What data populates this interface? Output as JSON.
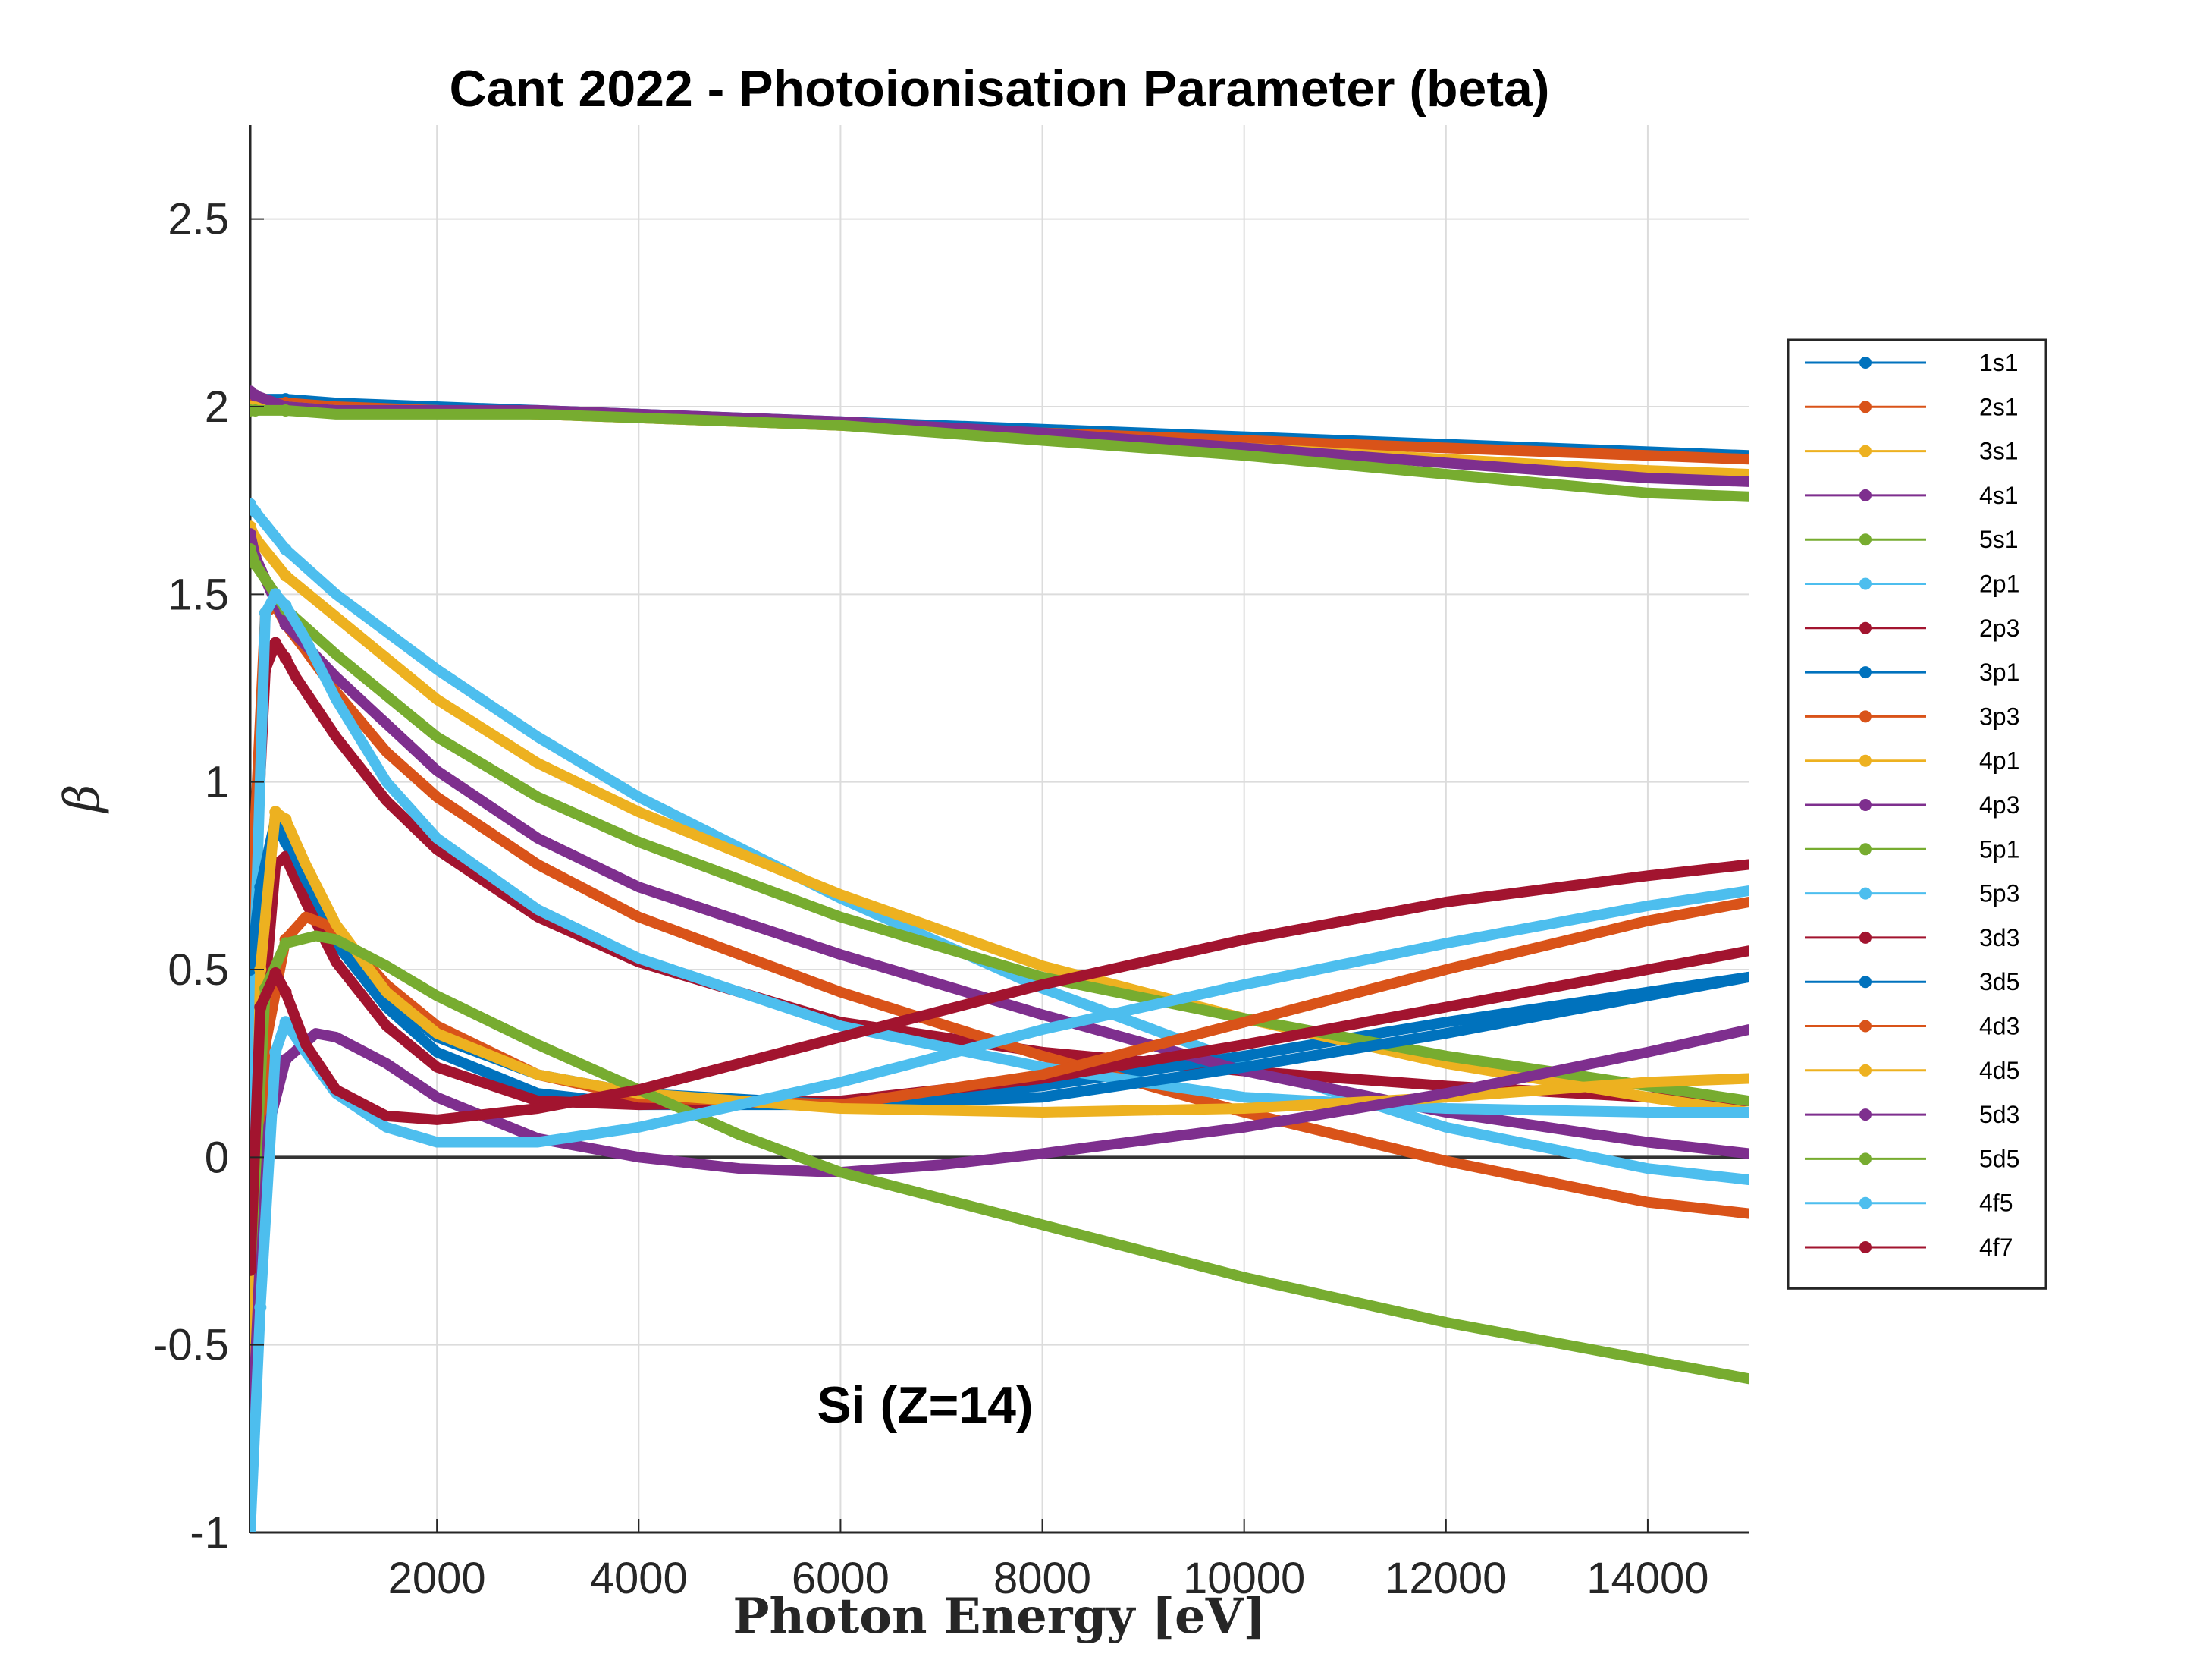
{
  "chart_data": {
    "type": "line",
    "title": "Cant 2022 - Photoionisation Parameter (beta)",
    "xlabel": "Photon Energy [eV]",
    "ylabel": "β",
    "annotation": "Si (Z=14)",
    "xlim": [
      150,
      15000
    ],
    "ylim": [
      -1,
      2.75
    ],
    "xticks": [
      2000,
      4000,
      6000,
      8000,
      10000,
      12000,
      14000
    ],
    "yticks": [
      -1,
      -0.5,
      0,
      0.5,
      1,
      1.5,
      2,
      2.5
    ],
    "xtick_labels": [
      "2000",
      "4000",
      "6000",
      "8000",
      "10000",
      "12000",
      "14000"
    ],
    "ytick_labels": [
      "-1",
      "-0.5",
      "0",
      "0.5",
      "1",
      "1.5",
      "2",
      "2.5"
    ],
    "grid": true,
    "legend_position": "outside-right",
    "zero_line": true,
    "series": [
      {
        "name": "1s1",
        "color": "#0072BD",
        "x": [
          150,
          200,
          500,
          1000,
          2000,
          3000,
          4000,
          6000,
          8000,
          10000,
          12000,
          14000,
          15000
        ],
        "y": [
          2.02,
          2.02,
          2.02,
          2.01,
          2.0,
          1.99,
          1.98,
          1.96,
          1.94,
          1.92,
          1.9,
          1.88,
          1.87
        ]
      },
      {
        "name": "2s1",
        "color": "#D95319",
        "x": [
          150,
          200,
          500,
          1000,
          2000,
          3000,
          4000,
          6000,
          8000,
          10000,
          12000,
          14000,
          15000
        ],
        "y": [
          2.01,
          2.01,
          2.01,
          2.0,
          1.99,
          1.98,
          1.97,
          1.95,
          1.93,
          1.91,
          1.89,
          1.87,
          1.86
        ]
      },
      {
        "name": "3s1",
        "color": "#EDB120",
        "x": [
          150,
          200,
          500,
          1000,
          2000,
          3000,
          4000,
          6000,
          8000,
          10000,
          12000,
          14000,
          15000
        ],
        "y": [
          2.0,
          2.0,
          2.0,
          1.99,
          1.99,
          1.98,
          1.97,
          1.95,
          1.92,
          1.89,
          1.86,
          1.83,
          1.82
        ]
      },
      {
        "name": "4s1",
        "color": "#7E2F8E",
        "x": [
          150,
          200,
          500,
          1000,
          2000,
          3000,
          4000,
          6000,
          8000,
          10000,
          12000,
          14000,
          15000
        ],
        "y": [
          2.04,
          2.03,
          2.0,
          1.99,
          1.99,
          1.99,
          1.98,
          1.96,
          1.93,
          1.89,
          1.85,
          1.81,
          1.8
        ]
      },
      {
        "name": "5s1",
        "color": "#77AC30",
        "x": [
          150,
          200,
          500,
          1000,
          2000,
          3000,
          4000,
          6000,
          8000,
          10000,
          12000,
          14000,
          15000
        ],
        "y": [
          1.99,
          1.99,
          1.99,
          1.98,
          1.98,
          1.98,
          1.97,
          1.95,
          1.91,
          1.87,
          1.82,
          1.77,
          1.76
        ]
      },
      {
        "name": "2p1",
        "color": "#4DBEEE",
        "x": [
          150,
          200,
          500,
          1000,
          2000,
          3000,
          4000,
          6000,
          8000,
          10000,
          12000,
          14000,
          15000
        ],
        "y": [
          1.74,
          1.72,
          1.62,
          1.5,
          1.3,
          1.12,
          0.96,
          0.69,
          0.45,
          0.25,
          0.08,
          -0.03,
          -0.06
        ]
      },
      {
        "name": "2p3",
        "color": "#A2142F",
        "x": [
          150,
          200,
          300,
          400,
          500,
          600,
          800,
          1000,
          1500,
          2000,
          3000,
          4000,
          6000,
          8000,
          10000,
          12000,
          14000,
          15000
        ],
        "y": [
          0.3,
          0.75,
          1.3,
          1.37,
          1.33,
          1.28,
          1.2,
          1.12,
          0.95,
          0.82,
          0.64,
          0.52,
          0.36,
          0.28,
          0.23,
          0.19,
          0.16,
          0.15
        ]
      },
      {
        "name": "3p1",
        "color": "#0072BD",
        "x": [
          150,
          250,
          400,
          500,
          700,
          1000,
          1500,
          2000,
          3000,
          4000,
          6000,
          8000,
          10000,
          12000,
          14000,
          15000
        ],
        "y": [
          0.5,
          0.7,
          0.88,
          0.84,
          0.72,
          0.57,
          0.4,
          0.28,
          0.17,
          0.14,
          0.14,
          0.19,
          0.27,
          0.36,
          0.44,
          0.48
        ]
      },
      {
        "name": "3p3",
        "color": "#D95319",
        "x": [
          150,
          200,
          300,
          400,
          500,
          700,
          1000,
          1500,
          2000,
          3000,
          4000,
          6000,
          8000,
          10000,
          12000,
          14000,
          15000
        ],
        "y": [
          -0.95,
          0.9,
          1.45,
          1.47,
          1.42,
          1.35,
          1.24,
          1.08,
          0.96,
          0.78,
          0.64,
          0.44,
          0.27,
          0.12,
          -0.01,
          -0.12,
          -0.15
        ]
      },
      {
        "name": "4p1",
        "color": "#EDB120",
        "x": [
          150,
          200,
          500,
          1000,
          2000,
          3000,
          4000,
          6000,
          8000,
          10000,
          12000,
          14000,
          15000
        ],
        "y": [
          1.68,
          1.65,
          1.55,
          1.44,
          1.22,
          1.05,
          0.92,
          0.7,
          0.51,
          0.37,
          0.25,
          0.16,
          0.12
        ]
      },
      {
        "name": "4p3",
        "color": "#7E2F8E",
        "x": [
          150,
          200,
          500,
          1000,
          2000,
          3000,
          4000,
          6000,
          8000,
          10000,
          12000,
          14000,
          15000
        ],
        "y": [
          1.66,
          1.6,
          1.42,
          1.28,
          1.03,
          0.85,
          0.72,
          0.54,
          0.38,
          0.23,
          0.12,
          0.04,
          0.01
        ]
      },
      {
        "name": "5p1",
        "color": "#77AC30",
        "x": [
          150,
          200,
          500,
          1000,
          2000,
          3000,
          4000,
          6000,
          8000,
          10000,
          12000,
          14000,
          15000
        ],
        "y": [
          1.62,
          1.58,
          1.46,
          1.34,
          1.12,
          0.96,
          0.84,
          0.64,
          0.48,
          0.37,
          0.27,
          0.19,
          0.15
        ]
      },
      {
        "name": "5p3",
        "color": "#4DBEEE",
        "x": [
          150,
          200,
          300,
          400,
          500,
          700,
          1000,
          1500,
          2000,
          3000,
          4000,
          6000,
          8000,
          10000,
          12000,
          14000,
          15000
        ],
        "y": [
          -1.0,
          0.6,
          1.45,
          1.5,
          1.47,
          1.38,
          1.22,
          1.0,
          0.85,
          0.66,
          0.53,
          0.35,
          0.24,
          0.16,
          0.13,
          0.12,
          0.12
        ]
      },
      {
        "name": "3d3",
        "color": "#A2142F",
        "x": [
          150,
          250,
          400,
          500,
          700,
          1000,
          1500,
          2000,
          3000,
          4000,
          6000,
          8000,
          10000,
          12000,
          14000,
          15000
        ],
        "y": [
          -1.0,
          0.3,
          0.78,
          0.8,
          0.68,
          0.52,
          0.35,
          0.24,
          0.15,
          0.14,
          0.15,
          0.21,
          0.3,
          0.4,
          0.5,
          0.55
        ]
      },
      {
        "name": "3d5",
        "color": "#0072BD",
        "x": [
          150,
          250,
          400,
          500,
          700,
          1000,
          1500,
          2000,
          3000,
          4000,
          6000,
          8000,
          10000,
          12000,
          14000,
          15000
        ],
        "y": [
          0.5,
          0.72,
          0.9,
          0.86,
          0.74,
          0.6,
          0.43,
          0.32,
          0.22,
          0.17,
          0.14,
          0.16,
          0.24,
          0.33,
          0.43,
          0.48
        ]
      },
      {
        "name": "4d3",
        "color": "#D95319",
        "x": [
          150,
          300,
          500,
          700,
          900,
          1200,
          1500,
          2000,
          3000,
          4000,
          6000,
          8000,
          10000,
          12000,
          14000,
          15000
        ],
        "y": [
          -0.9,
          0.3,
          0.58,
          0.64,
          0.62,
          0.55,
          0.46,
          0.35,
          0.22,
          0.16,
          0.14,
          0.22,
          0.36,
          0.5,
          0.63,
          0.68
        ]
      },
      {
        "name": "4d5",
        "color": "#EDB120",
        "x": [
          150,
          250,
          400,
          500,
          700,
          1000,
          1500,
          2000,
          3000,
          4000,
          6000,
          8000,
          10000,
          12000,
          14000,
          15000
        ],
        "y": [
          -0.8,
          0.5,
          0.92,
          0.9,
          0.78,
          0.62,
          0.44,
          0.33,
          0.22,
          0.17,
          0.13,
          0.12,
          0.13,
          0.16,
          0.2,
          0.21
        ]
      },
      {
        "name": "5d3",
        "color": "#7E2F8E",
        "x": [
          150,
          300,
          500,
          800,
          1000,
          1500,
          2000,
          3000,
          4000,
          5000,
          6000,
          7000,
          8000,
          10000,
          12000,
          14000,
          15000
        ],
        "y": [
          -0.85,
          0.05,
          0.26,
          0.33,
          0.32,
          0.25,
          0.16,
          0.05,
          0.0,
          -0.03,
          -0.04,
          -0.02,
          0.01,
          0.08,
          0.17,
          0.28,
          0.34
        ]
      },
      {
        "name": "5d5",
        "color": "#77AC30",
        "x": [
          150,
          300,
          500,
          800,
          1000,
          1500,
          2000,
          3000,
          4000,
          5000,
          6000,
          8000,
          10000,
          12000,
          14000,
          15000
        ],
        "y": [
          -0.3,
          0.45,
          0.57,
          0.59,
          0.58,
          0.51,
          0.43,
          0.3,
          0.18,
          0.06,
          -0.04,
          -0.18,
          -0.32,
          -0.44,
          -0.54,
          -0.59
        ]
      },
      {
        "name": "4f5",
        "color": "#4DBEEE",
        "x": [
          150,
          250,
          400,
          500,
          700,
          1000,
          1500,
          2000,
          2500,
          3000,
          4000,
          6000,
          8000,
          10000,
          12000,
          14000,
          15000
        ],
        "y": [
          -1.0,
          -0.4,
          0.28,
          0.36,
          0.28,
          0.17,
          0.08,
          0.04,
          0.04,
          0.04,
          0.08,
          0.2,
          0.34,
          0.46,
          0.57,
          0.67,
          0.71
        ]
      },
      {
        "name": "4f7",
        "color": "#A2142F",
        "x": [
          150,
          250,
          400,
          500,
          700,
          1000,
          1500,
          2000,
          3000,
          4000,
          6000,
          8000,
          10000,
          12000,
          14000,
          15000
        ],
        "y": [
          -0.3,
          0.4,
          0.49,
          0.44,
          0.3,
          0.18,
          0.11,
          0.1,
          0.13,
          0.18,
          0.32,
          0.46,
          0.58,
          0.68,
          0.75,
          0.78
        ]
      }
    ]
  }
}
